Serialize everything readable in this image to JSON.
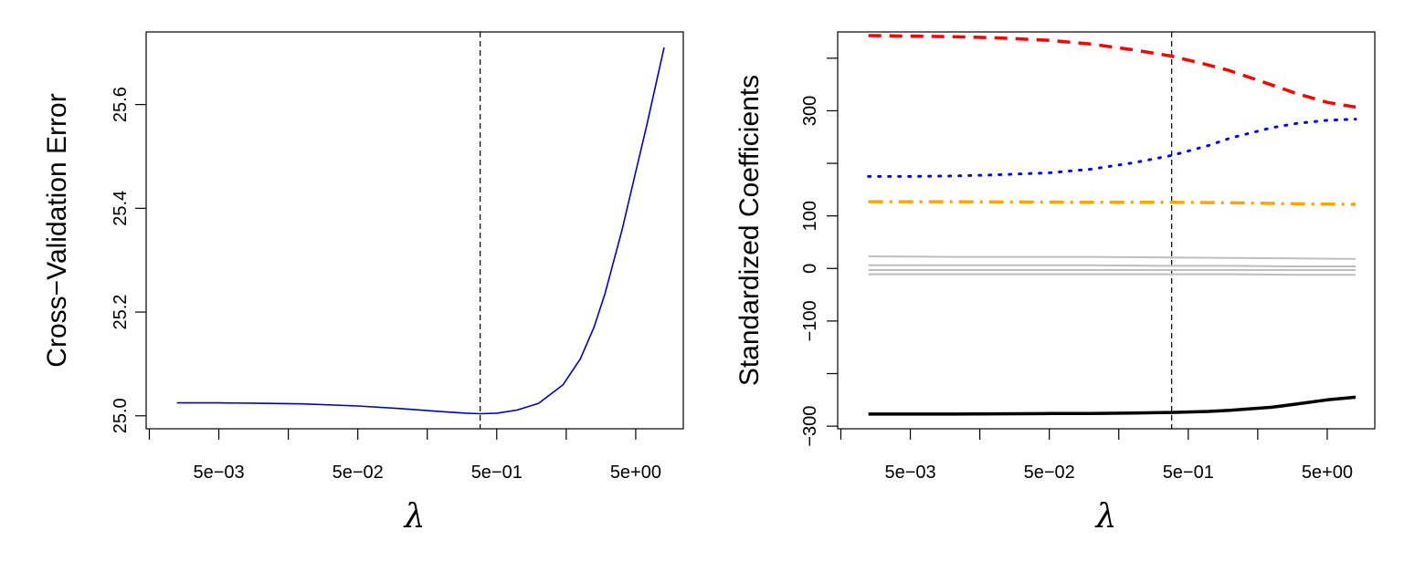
{
  "chart_data": [
    {
      "type": "line",
      "title": "",
      "xlabel": "λ",
      "ylabel": "Cross−Validation Error",
      "x_scale": "log",
      "xlim": [
        0.0015,
        11
      ],
      "ylim": [
        24.975,
        25.74
      ],
      "x_ticks": [
        0.005,
        0.05,
        0.5,
        5
      ],
      "x_tick_labels": [
        "5e−03",
        "5e−02",
        "5e−01",
        "5e+00"
      ],
      "y_ticks": [
        25.0,
        25.2,
        25.4,
        25.6
      ],
      "y_tick_labels": [
        "25.0",
        "25.2",
        "25.4",
        "25.6"
      ],
      "vline_x": 0.38,
      "grid": false,
      "series": [
        {
          "color": "#0000cc",
          "style": "solid",
          "x": [
            0.0025,
            0.005,
            0.01,
            0.02,
            0.05,
            0.1,
            0.2,
            0.3,
            0.38,
            0.5,
            0.7,
            1.0,
            1.5,
            2.0,
            2.5,
            3.0,
            4.0,
            5.0,
            6.0,
            7.0,
            8.0
          ],
          "y": [
            25.025,
            25.025,
            25.024,
            25.023,
            25.019,
            25.014,
            25.008,
            25.005,
            25.004,
            25.005,
            25.011,
            25.024,
            25.06,
            25.11,
            25.17,
            25.235,
            25.36,
            25.47,
            25.56,
            25.64,
            25.71
          ]
        }
      ]
    },
    {
      "type": "line",
      "title": "",
      "xlabel": "λ",
      "ylabel": "Standardized Coefficients",
      "x_scale": "log",
      "xlim": [
        0.0015,
        11
      ],
      "ylim": [
        -305,
        450
      ],
      "x_ticks": [
        0.005,
        0.05,
        0.5,
        5
      ],
      "x_tick_labels": [
        "5e−03",
        "5e−02",
        "5e−01",
        "5e+00"
      ],
      "y_ticks": [
        -300,
        -200,
        -100,
        0,
        100,
        200,
        300,
        400
      ],
      "y_tick_labels": [
        "−300",
        "",
        "−100",
        "0",
        "100",
        "",
        "300",
        ""
      ],
      "vline_x": 0.38,
      "grid": false,
      "series": [
        {
          "color": "#ff0000",
          "style": "dashed",
          "width": 3.5,
          "x": [
            0.0025,
            0.005,
            0.01,
            0.02,
            0.05,
            0.1,
            0.2,
            0.38,
            0.7,
            1.0,
            2.0,
            3.0,
            5.0,
            8.0
          ],
          "y": [
            443,
            442,
            441,
            439,
            434,
            427,
            416,
            404,
            387,
            376,
            349,
            333,
            316,
            307
          ]
        },
        {
          "color": "#0000ff",
          "style": "dotted",
          "width": 3,
          "x": [
            0.0025,
            0.005,
            0.01,
            0.02,
            0.05,
            0.1,
            0.2,
            0.38,
            0.7,
            1.0,
            2.0,
            3.0,
            5.0,
            8.0
          ],
          "y": [
            175,
            175,
            176,
            178,
            182,
            189,
            201,
            215,
            234,
            248,
            268,
            276,
            282,
            284
          ]
        },
        {
          "color": "#ffa500",
          "style": "dashdot",
          "width": 3.5,
          "x": [
            0.0025,
            0.01,
            0.1,
            0.38,
            1.0,
            3.0,
            8.0
          ],
          "y": [
            127,
            127,
            126,
            126,
            125,
            123,
            122
          ]
        },
        {
          "color": "#bebebe",
          "style": "solid",
          "width": 2,
          "x": [
            0.0025,
            0.01,
            0.1,
            0.38,
            1.0,
            3.0,
            8.0
          ],
          "y": [
            23,
            22,
            22,
            21,
            20,
            19,
            18
          ]
        },
        {
          "color": "#bebebe",
          "style": "solid",
          "width": 2,
          "x": [
            0.0025,
            0.01,
            0.1,
            0.38,
            1.0,
            3.0,
            8.0
          ],
          "y": [
            6,
            6,
            6,
            5,
            5,
            4,
            4
          ]
        },
        {
          "color": "#bebebe",
          "style": "solid",
          "width": 2,
          "x": [
            0.0025,
            0.01,
            0.1,
            0.38,
            1.0,
            3.0,
            8.0
          ],
          "y": [
            -3,
            -3,
            -3,
            -3,
            -3,
            -3,
            -3
          ]
        },
        {
          "color": "#bebebe",
          "style": "solid",
          "width": 2,
          "x": [
            0.0025,
            0.01,
            0.1,
            0.38,
            1.0,
            3.0,
            8.0
          ],
          "y": [
            -11,
            -11,
            -11,
            -11,
            -11,
            -12,
            -12
          ]
        },
        {
          "color": "#000000",
          "style": "solid",
          "width": 3.5,
          "x": [
            0.0025,
            0.01,
            0.05,
            0.1,
            0.2,
            0.38,
            0.7,
            1.0,
            2.0,
            3.0,
            5.0,
            8.0
          ],
          "y": [
            -277,
            -277,
            -276,
            -276,
            -275,
            -274,
            -272,
            -270,
            -264,
            -258,
            -250,
            -245
          ]
        }
      ]
    }
  ]
}
